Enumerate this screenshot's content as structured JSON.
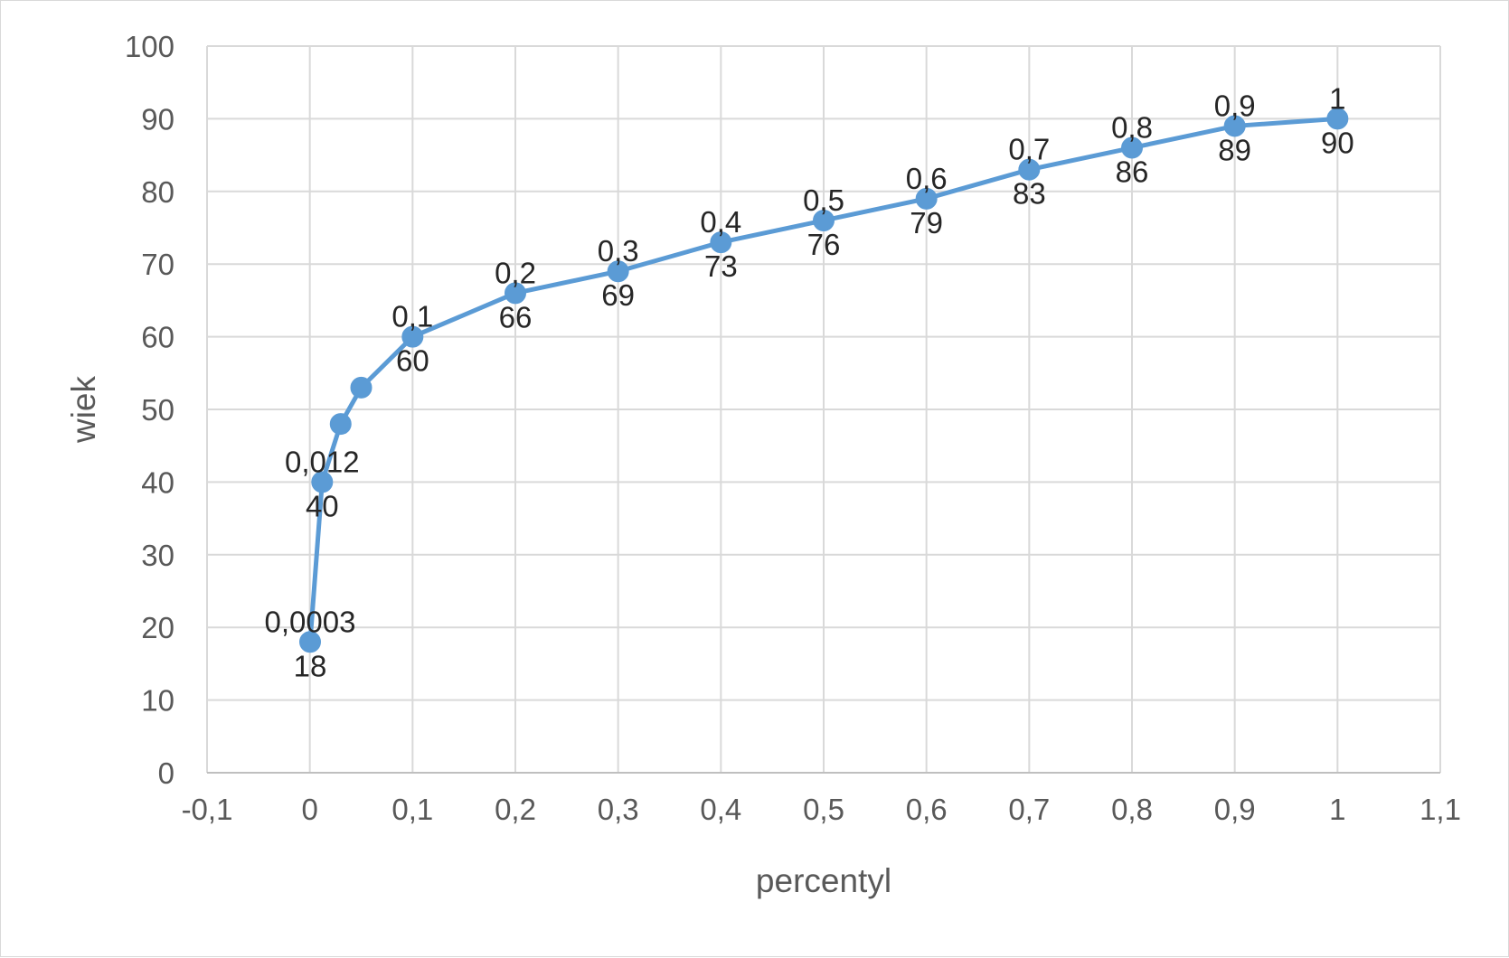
{
  "chart_data": {
    "type": "scatter",
    "title": "",
    "xlabel": "percentyl",
    "ylabel": "wiek",
    "xlim": [
      -0.1,
      1.1
    ],
    "ylim": [
      0,
      100
    ],
    "x_ticks": [
      "-0,1",
      "0",
      "0,1",
      "0,2",
      "0,3",
      "0,4",
      "0,5",
      "0,6",
      "0,7",
      "0,8",
      "0,9",
      "1",
      "1,1"
    ],
    "y_ticks": [
      "0",
      "10",
      "20",
      "30",
      "40",
      "50",
      "60",
      "70",
      "80",
      "90",
      "100"
    ],
    "grid": true,
    "legend": "none",
    "series": [
      {
        "color": "#5b9bd5",
        "marker": "circle",
        "line": "straight",
        "points": [
          {
            "x": 0.0003,
            "y": 18,
            "x_label": "0,0003",
            "y_label": "18"
          },
          {
            "x": 0.012,
            "y": 40,
            "x_label": "0,012",
            "y_label": "40"
          },
          {
            "x": 0.03,
            "y": 48
          },
          {
            "x": 0.05,
            "y": 53
          },
          {
            "x": 0.1,
            "y": 60,
            "x_label": "0,1",
            "y_label": "60"
          },
          {
            "x": 0.2,
            "y": 66,
            "x_label": "0,2",
            "y_label": "66"
          },
          {
            "x": 0.3,
            "y": 69,
            "x_label": "0,3",
            "y_label": "69"
          },
          {
            "x": 0.4,
            "y": 73,
            "x_label": "0,4",
            "y_label": "73"
          },
          {
            "x": 0.5,
            "y": 76,
            "x_label": "0,5",
            "y_label": "76"
          },
          {
            "x": 0.6,
            "y": 79,
            "x_label": "0,6",
            "y_label": "79"
          },
          {
            "x": 0.7,
            "y": 83,
            "x_label": "0,7",
            "y_label": "83"
          },
          {
            "x": 0.8,
            "y": 86,
            "x_label": "0,8",
            "y_label": "86"
          },
          {
            "x": 0.9,
            "y": 89,
            "x_label": "0,9",
            "y_label": "89"
          },
          {
            "x": 1,
            "y": 90,
            "x_label": "1",
            "y_label": "90"
          }
        ]
      }
    ]
  },
  "colors": {
    "series": "#5b9bd5",
    "grid": "#d9d9d9",
    "axis_text": "#595959",
    "data_label": "#262626"
  }
}
